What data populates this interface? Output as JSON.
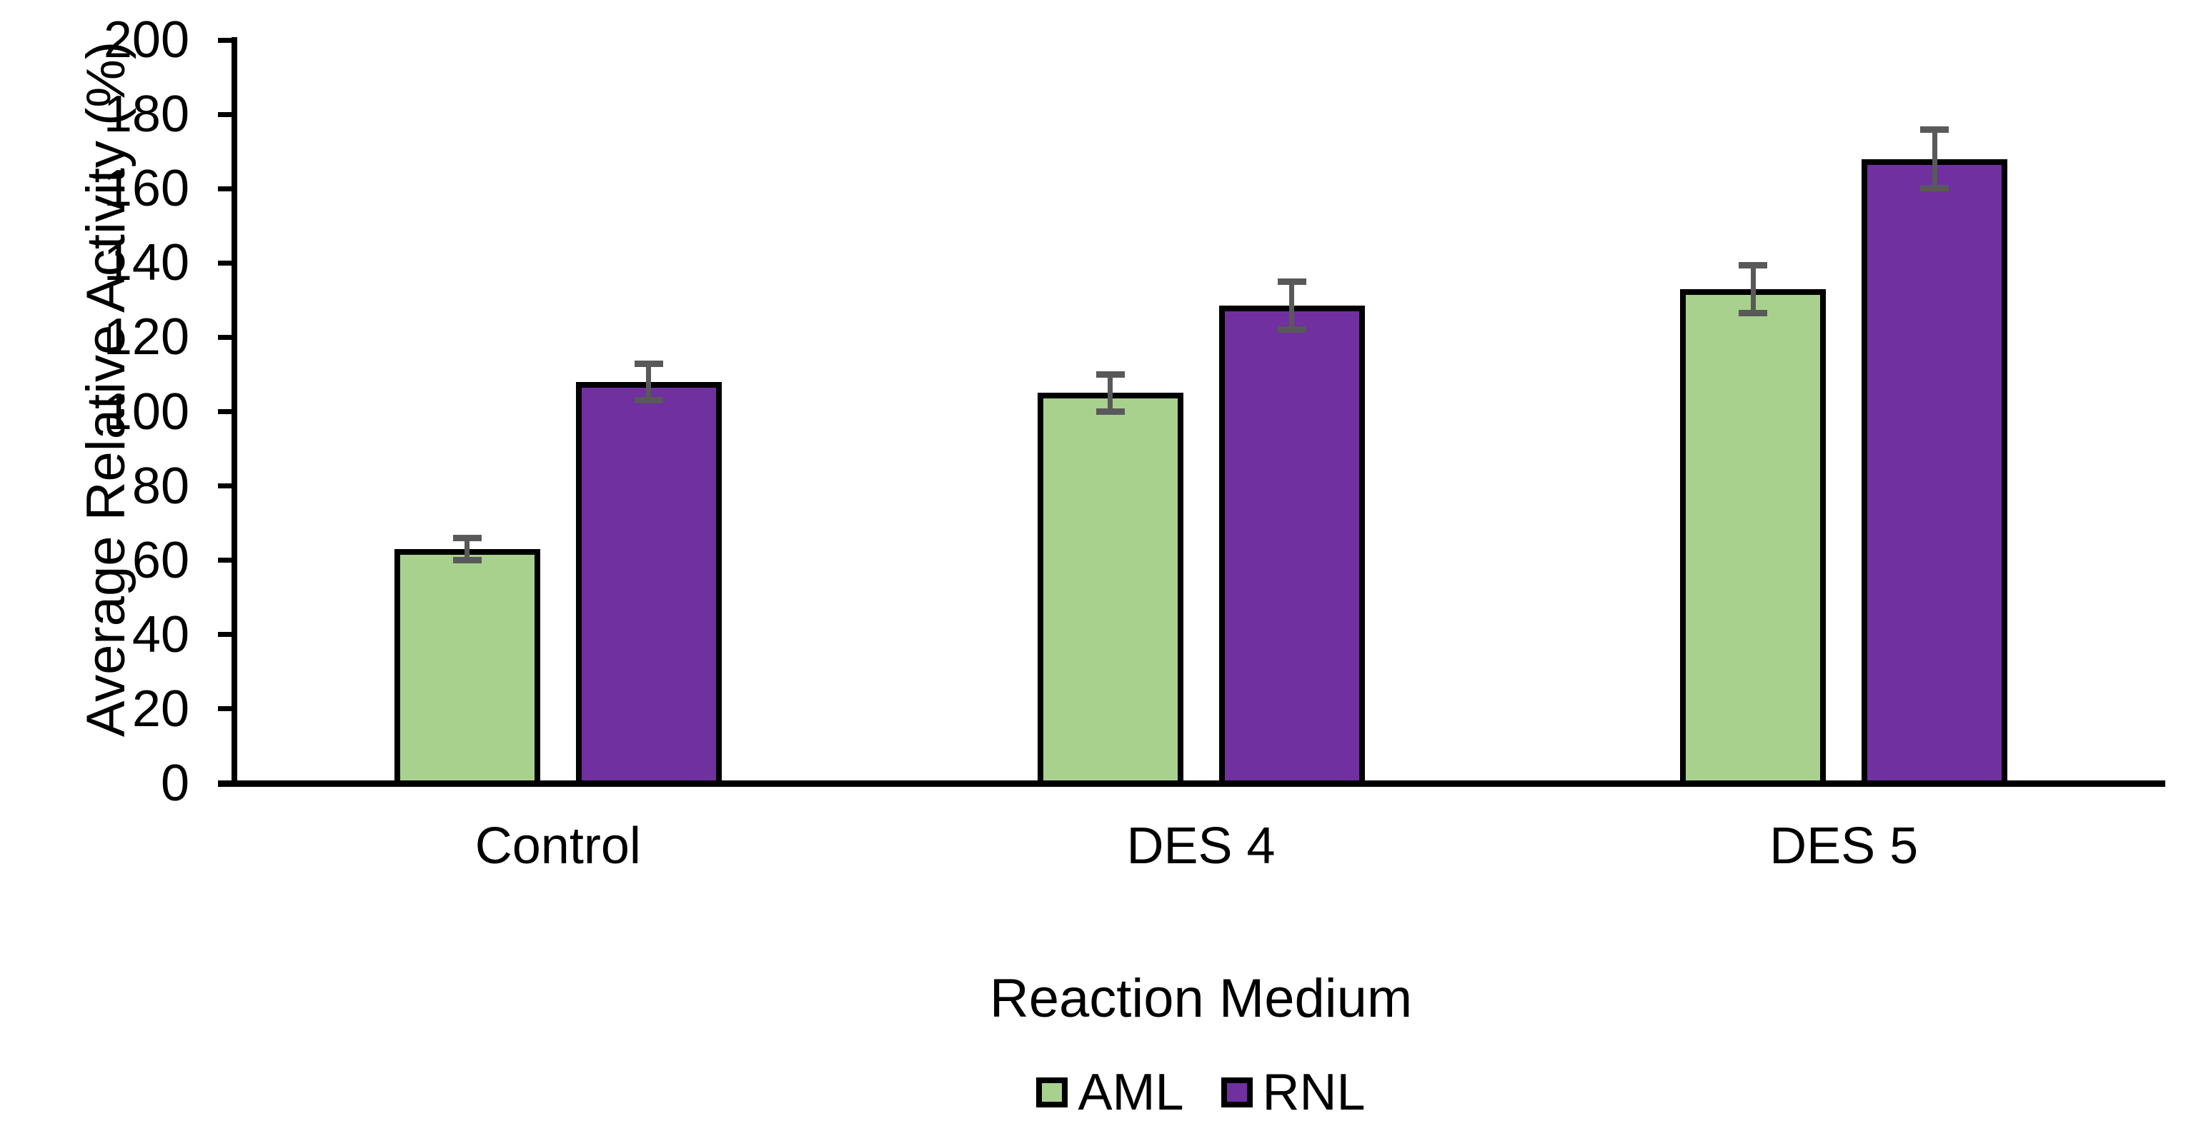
{
  "chart_data": {
    "type": "bar",
    "title": "",
    "categories": [
      "Control",
      "DES 4",
      "DES 5"
    ],
    "series": [
      {
        "name": "AML",
        "color": "#A9D18E",
        "values": [
          63,
          105,
          133
        ],
        "errors": [
          3,
          5,
          6.5
        ]
      },
      {
        "name": "RNL",
        "color": "#7030A0",
        "values": [
          108,
          128.5,
          168
        ],
        "errors": [
          5,
          6.5,
          8
        ]
      }
    ],
    "xlabel": "Reaction Medium",
    "ylabel": "Average Relative Activity (%)",
    "ylim": [
      0,
      200
    ],
    "ytick_step": 20,
    "ytick_labels": [
      "0",
      "20",
      "40",
      "60",
      "80",
      "100",
      "120",
      "140",
      "160",
      "180",
      "200"
    ],
    "grid": false,
    "legend_position": "bottom",
    "colors": {
      "bar_outline": "#000000",
      "error_bar": "#595959",
      "axis": "#000000",
      "text": "#000000",
      "background": "#FFFFFF"
    }
  }
}
